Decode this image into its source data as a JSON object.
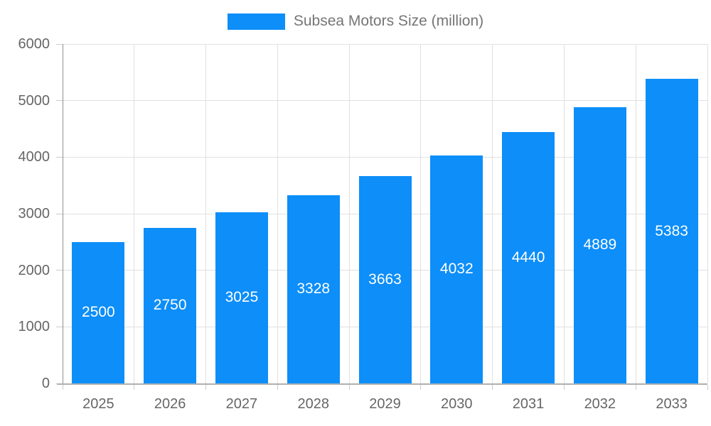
{
  "legend": {
    "label": "Subsea Motors Size (million)"
  },
  "chart_data": {
    "type": "bar",
    "title": "Subsea Motors Size (million)",
    "series_name": "Subsea Motors Size (million)",
    "categories": [
      "2025",
      "2026",
      "2027",
      "2028",
      "2029",
      "2030",
      "2031",
      "2032",
      "2033"
    ],
    "values": [
      2500,
      2750,
      3025,
      3328,
      3663,
      4032,
      4440,
      4889,
      5383
    ],
    "xlabel": "",
    "ylabel": "",
    "ylim": [
      0,
      6000
    ],
    "yticks": [
      0,
      1000,
      2000,
      3000,
      4000,
      5000,
      6000
    ],
    "grid": true,
    "legend_position": "top",
    "bar_labels_inside": true
  },
  "colors": {
    "bar": "#0d8ef9",
    "bar_label": "#ffffff",
    "grid": "#e0e0e0",
    "y_axis_line": "#8f8f8f",
    "x_axis_line": "#b0b0b0",
    "tick": "#cccccc",
    "axis_text": "#666666",
    "title_text": "#757575",
    "background": "#ffffff"
  }
}
